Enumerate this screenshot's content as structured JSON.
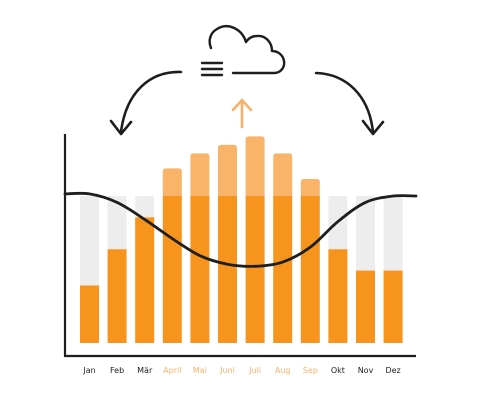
{
  "colors": {
    "bar_low": "#F7941D",
    "bar_high": "#F9B46A",
    "bar_track": "#EEEDED",
    "curve": "#1E1E1E",
    "label_dark": "#1E1E1E",
    "label_highlight": "#F7B26A",
    "arrow_up": "#F7B26A"
  },
  "icons": {
    "cloud": "cloud-icon",
    "arrows": "curved-arrow-icon",
    "up": "up-arrow-icon"
  },
  "chart_data": {
    "type": "bar",
    "categories": [
      "Jan",
      "Feb",
      "Mär",
      "April",
      "Mai",
      "Juni",
      "Juli",
      "Aug",
      "Sep",
      "Okt",
      "Nov",
      "Dez"
    ],
    "highlighted_categories": [
      "April",
      "Mai",
      "Juni",
      "Juli",
      "Aug",
      "Sep"
    ],
    "values": [
      27,
      44,
      59,
      82,
      89,
      93,
      97,
      89,
      77,
      44,
      34,
      34
    ],
    "track_max": 69,
    "curve_values": [
      70,
      66,
      58,
      49,
      41,
      37,
      36,
      38,
      45,
      57,
      66,
      69
    ],
    "ylim": [
      0,
      100
    ],
    "title": "",
    "xlabel": "",
    "ylabel": "",
    "grid": false
  }
}
